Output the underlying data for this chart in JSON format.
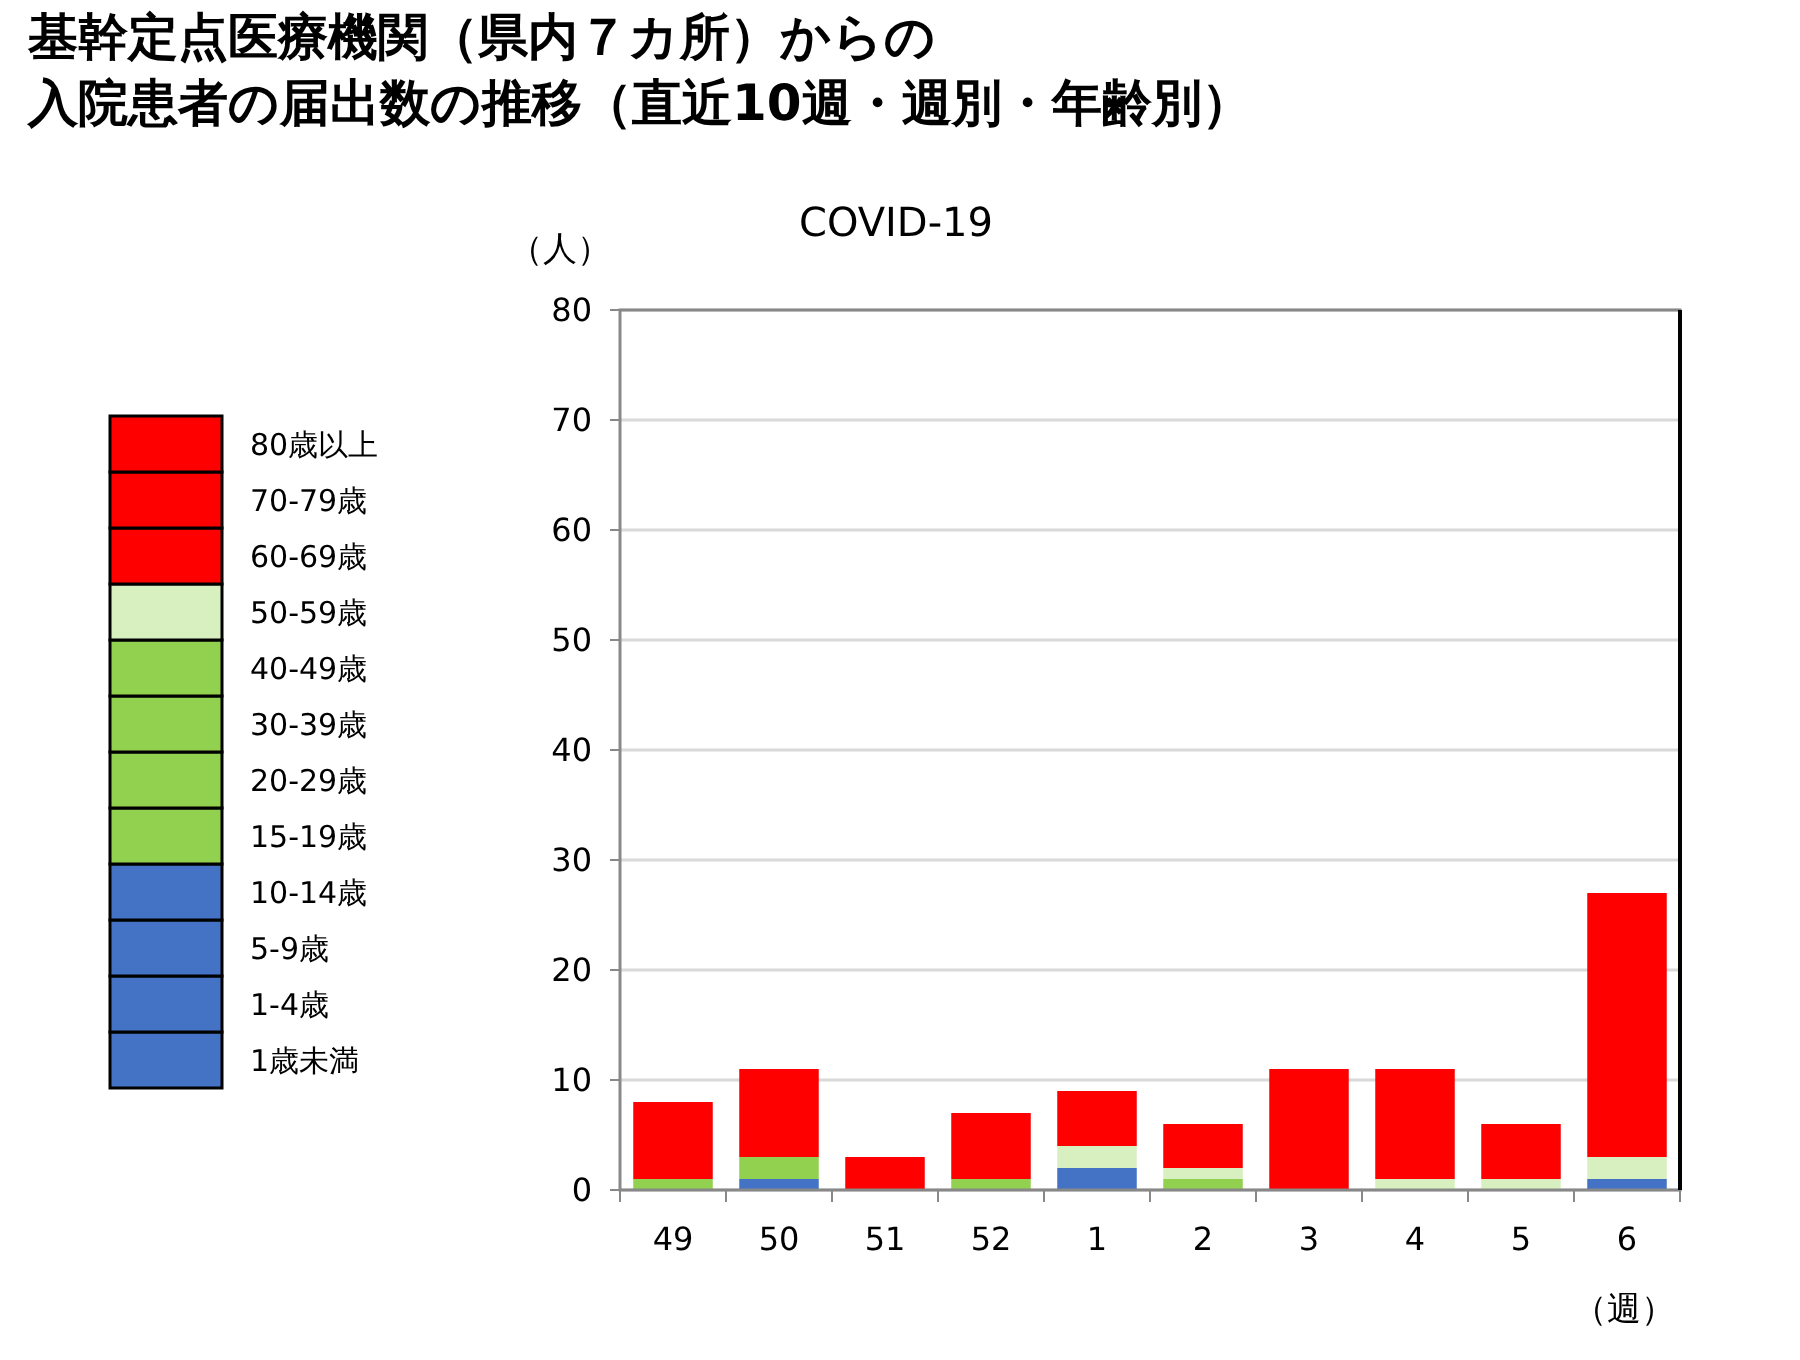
{
  "chart_data": {
    "type": "bar",
    "title": "基幹定点医療機関（県内７カ所）からの入院患者の届出数の推移（直近10週・週別・年齢別）",
    "subtitle": "COVID-19",
    "ylabel": "（人）",
    "xlabel": "（週）",
    "categories": [
      "49",
      "50",
      "51",
      "52",
      "1",
      "2",
      "3",
      "4",
      "5",
      "6"
    ],
    "stacked": true,
    "ylim": [
      0,
      80
    ],
    "yticks": [
      0,
      10,
      20,
      30,
      40,
      50,
      60,
      70,
      80
    ],
    "grid": "y",
    "legend": "left",
    "series": [
      {
        "name": "1歳未満",
        "color": "#4472c4",
        "values": [
          0,
          1,
          0,
          0,
          1,
          0,
          0,
          0,
          0,
          1
        ]
      },
      {
        "name": "1-4歳",
        "color": "#4472c4",
        "values": [
          0,
          0,
          0,
          0,
          0,
          0,
          0,
          0,
          0,
          0
        ]
      },
      {
        "name": "5-9歳",
        "color": "#4472c4",
        "values": [
          0,
          0,
          0,
          0,
          1,
          0,
          0,
          0,
          0,
          0
        ]
      },
      {
        "name": "10-14歳",
        "color": "#4472c4",
        "values": [
          0,
          0,
          0,
          0,
          0,
          0,
          0,
          0,
          0,
          0
        ]
      },
      {
        "name": "15-19歳",
        "color": "#92d050",
        "values": [
          0,
          0,
          0,
          0,
          0,
          0,
          0,
          0,
          0,
          0
        ]
      },
      {
        "name": "20-29歳",
        "color": "#92d050",
        "values": [
          0,
          1,
          0,
          0,
          0,
          1,
          0,
          0,
          0,
          0
        ]
      },
      {
        "name": "30-39歳",
        "color": "#92d050",
        "values": [
          1,
          0,
          0,
          0,
          0,
          0,
          0,
          0,
          0,
          0
        ]
      },
      {
        "name": "40-49歳",
        "color": "#92d050",
        "values": [
          0,
          1,
          0,
          1,
          0,
          0,
          0,
          0,
          0,
          0
        ]
      },
      {
        "name": "50-59歳",
        "color": "#d8efc0",
        "values": [
          0,
          0,
          0,
          0,
          2,
          1,
          0,
          1,
          1,
          2
        ]
      },
      {
        "name": "60-69歳",
        "color": "#ff0000",
        "values": [
          0,
          1,
          1,
          0,
          0,
          1,
          3,
          1,
          1,
          2
        ]
      },
      {
        "name": "70-79歳",
        "color": "#ff0000",
        "values": [
          1,
          1,
          2,
          1,
          1,
          0,
          3,
          2,
          1,
          7
        ]
      },
      {
        "name": "80歳以上",
        "color": "#ff0000",
        "values": [
          6,
          6,
          0,
          5,
          4,
          3,
          5,
          7,
          3,
          15
        ]
      }
    ]
  }
}
